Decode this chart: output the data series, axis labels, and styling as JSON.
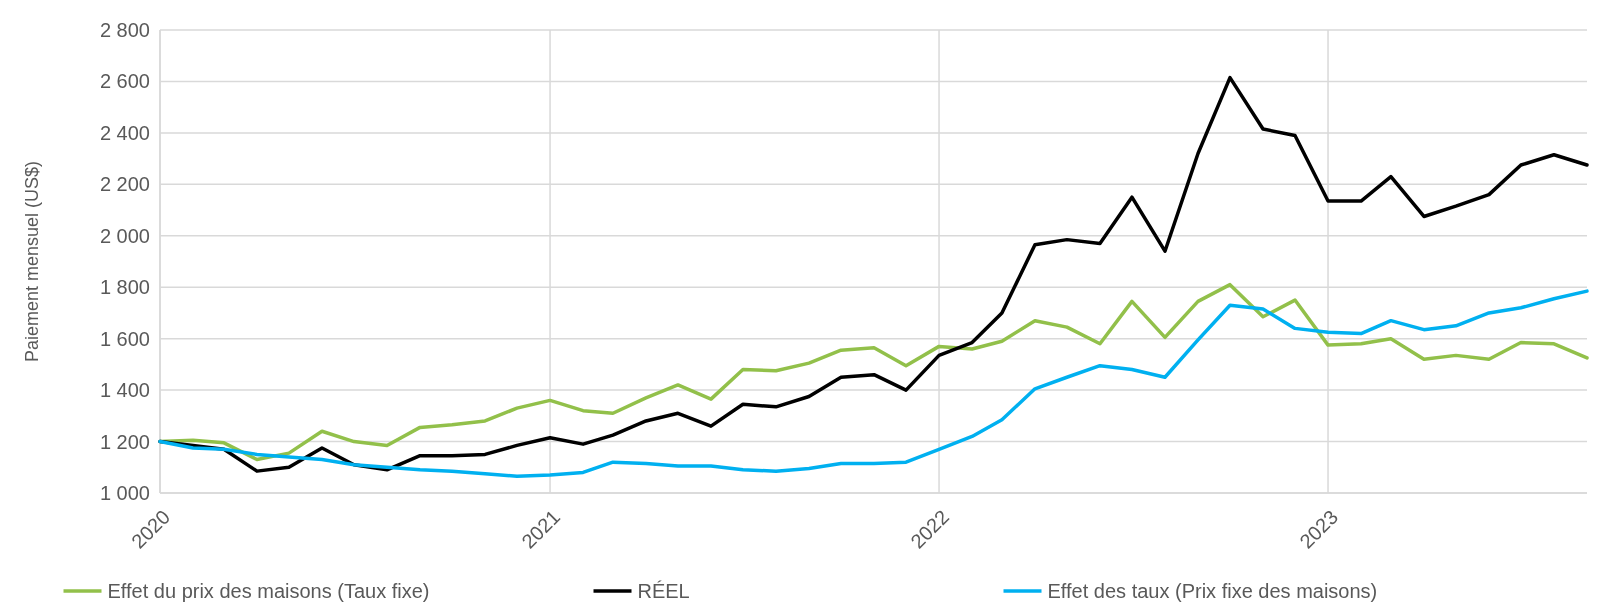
{
  "chart_data": {
    "type": "line",
    "ylabel": "Paiement mensuel (US$)",
    "x": [
      "2020-01",
      "2020-02",
      "2020-03",
      "2020-04",
      "2020-05",
      "2020-06",
      "2020-07",
      "2020-08",
      "2020-09",
      "2020-10",
      "2020-11",
      "2020-12",
      "2021-01",
      "2021-02",
      "2021-03",
      "2021-04",
      "2021-05",
      "2021-06",
      "2021-07",
      "2021-08",
      "2021-09",
      "2021-10",
      "2021-11",
      "2021-12",
      "2022-01",
      "2022-02",
      "2022-03",
      "2022-04",
      "2022-05",
      "2022-06",
      "2022-07",
      "2022-08",
      "2022-09",
      "2022-10",
      "2022-11",
      "2022-12",
      "2023-01",
      "2023-02",
      "2023-03",
      "2023-04",
      "2023-05",
      "2023-06",
      "2023-07",
      "2023-08",
      "2023-09"
    ],
    "series": [
      {
        "name": "Effet du prix des maisons (Taux fixe)",
        "color": "#92c04a",
        "values": [
          1200,
          1205,
          1195,
          1130,
          1155,
          1240,
          1200,
          1185,
          1255,
          1265,
          1280,
          1330,
          1360,
          1320,
          1310,
          1370,
          1420,
          1365,
          1480,
          1475,
          1505,
          1555,
          1565,
          1495,
          1570,
          1560,
          1590,
          1670,
          1645,
          1580,
          1745,
          1605,
          1745,
          1810,
          1685,
          1750,
          1575,
          1580,
          1600,
          1520,
          1535,
          1520,
          1585,
          1580,
          1525
        ]
      },
      {
        "name": "RÉEL",
        "color": "#000000",
        "values": [
          1200,
          1185,
          1170,
          1085,
          1100,
          1175,
          1110,
          1090,
          1145,
          1145,
          1150,
          1185,
          1215,
          1190,
          1225,
          1280,
          1310,
          1260,
          1345,
          1335,
          1375,
          1450,
          1460,
          1400,
          1535,
          1585,
          1700,
          1965,
          1985,
          1970,
          2150,
          1940,
          2320,
          2615,
          2415,
          2390,
          2135,
          2135,
          2230,
          2075,
          2115,
          2160,
          2275,
          2315,
          2275
        ]
      },
      {
        "name": "Effet des taux (Prix fixe des maisons)",
        "color": "#00b0f0",
        "values": [
          1200,
          1175,
          1170,
          1150,
          1140,
          1130,
          1110,
          1100,
          1090,
          1085,
          1075,
          1065,
          1070,
          1080,
          1120,
          1115,
          1105,
          1105,
          1090,
          1085,
          1095,
          1115,
          1115,
          1120,
          1170,
          1220,
          1285,
          1405,
          1450,
          1495,
          1480,
          1450,
          1595,
          1730,
          1715,
          1640,
          1625,
          1620,
          1670,
          1635,
          1650,
          1700,
          1720,
          1755,
          1785
        ]
      }
    ],
    "xlim": [
      "2020-01",
      "2023-09"
    ],
    "xticks": [
      {
        "value": "2020-01",
        "label": "2020"
      },
      {
        "value": "2021-01",
        "label": "2021"
      },
      {
        "value": "2022-01",
        "label": "2022"
      },
      {
        "value": "2023-01",
        "label": "2023"
      }
    ],
    "ylim": [
      1000,
      2800
    ],
    "yticks": [
      {
        "value": 1000,
        "label": "1 000"
      },
      {
        "value": 1200,
        "label": "1 200"
      },
      {
        "value": 1400,
        "label": "1 400"
      },
      {
        "value": 1600,
        "label": "1 600"
      },
      {
        "value": 1800,
        "label": "1 800"
      },
      {
        "value": 2000,
        "label": "2 000"
      },
      {
        "value": 2200,
        "label": "2 200"
      },
      {
        "value": 2400,
        "label": "2 400"
      },
      {
        "value": 2600,
        "label": "2 600"
      },
      {
        "value": 2800,
        "label": "2 800"
      }
    ],
    "grid": true,
    "legend": "bottom",
    "marker": "none",
    "line_style": "solid"
  }
}
